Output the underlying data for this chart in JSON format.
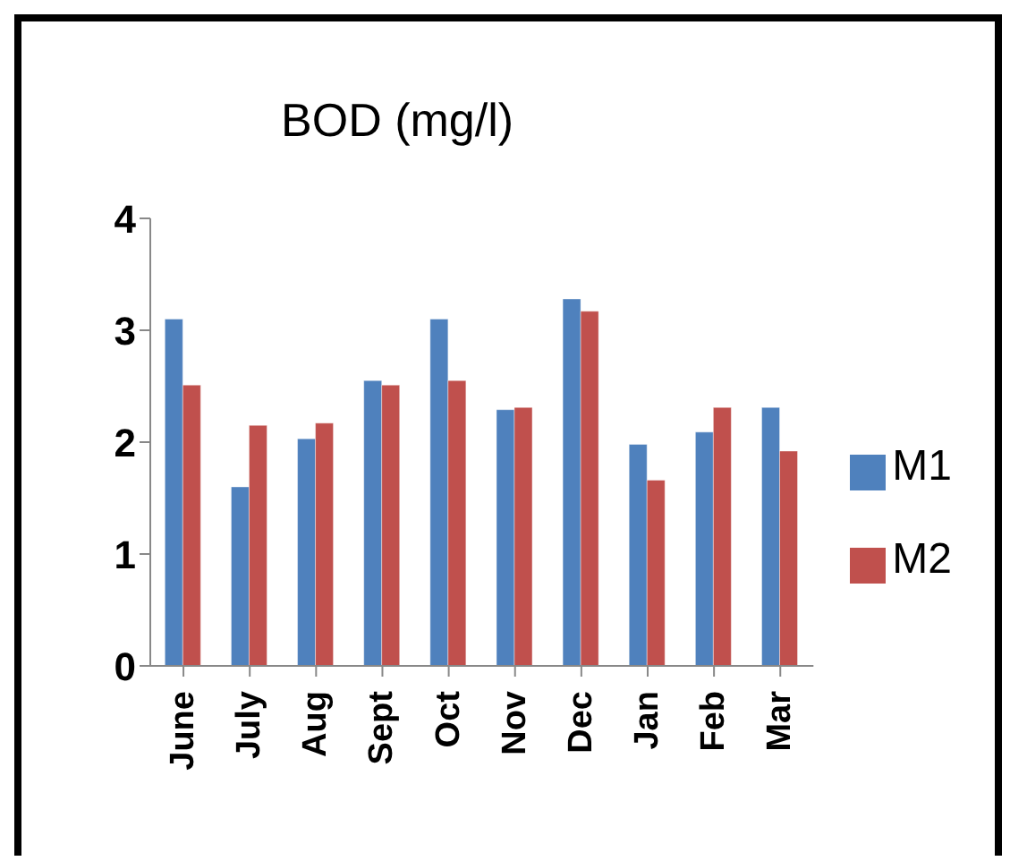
{
  "chart_data": {
    "type": "bar",
    "title": "BOD (mg/l)",
    "categories": [
      "June",
      "July",
      "Aug",
      "Sept",
      "Oct",
      "Nov",
      "Dec",
      "Jan",
      "Feb",
      "Mar"
    ],
    "series": [
      {
        "name": "M1",
        "color": "#4f81bd",
        "values": [
          3.1,
          1.6,
          2.03,
          2.55,
          3.1,
          2.29,
          3.28,
          1.98,
          2.09,
          2.31
        ]
      },
      {
        "name": "M2",
        "color": "#c0504d",
        "values": [
          2.51,
          2.15,
          2.17,
          2.51,
          2.55,
          2.31,
          3.17,
          1.66,
          2.31,
          1.92
        ]
      }
    ],
    "ylim": [
      0,
      4
    ],
    "yticks": [
      0,
      1,
      2,
      3,
      4
    ],
    "grid": false,
    "legend": "right"
  }
}
